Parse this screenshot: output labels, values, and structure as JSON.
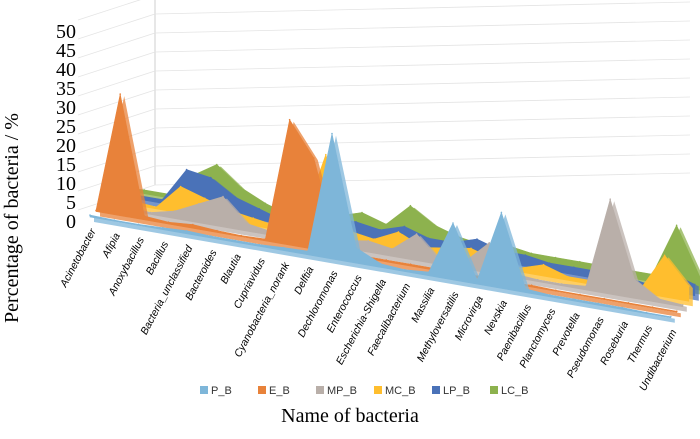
{
  "chart_data": {
    "type": "area",
    "title": "",
    "xlabel": "Name of bacteria",
    "ylabel": "Percentage of bacteria / %",
    "ylim": [
      0,
      50
    ],
    "yticks": [
      0,
      5,
      10,
      15,
      20,
      25,
      30,
      35,
      40,
      45,
      50
    ],
    "grid": true,
    "legend_position": "bottom",
    "categories": [
      "Acinetobacter",
      "Afipia",
      "Anoxybacillus",
      "Bacillus",
      "Bacteria_unclassified",
      "Bacteroides",
      "Blautia",
      "Cupriavidus",
      "Cyanobacteria_norank",
      "Delftia",
      "Dechloromonas",
      "Enterococcus",
      "Escherichia-Shigella",
      "Faecalibacterium",
      "Massilia",
      "Methyloversatilis",
      "Microvirga",
      "Nevskia",
      "Paenibacillus",
      "Planctomyces",
      "Prevotella",
      "Pseudomonas",
      "Roseburia",
      "Thermus",
      "Undibacterium"
    ],
    "series": [
      {
        "name": "P_B",
        "color": "#7EB6D9",
        "values": [
          0.5,
          0.3,
          0.3,
          0.5,
          0.8,
          0.5,
          0.5,
          0.5,
          0.8,
          1,
          33,
          4,
          1,
          0.5,
          1,
          15,
          1,
          20,
          1,
          0.5,
          0.5,
          0.5,
          0.5,
          0.3,
          0.3
        ]
      },
      {
        "name": "E_B",
        "color": "#E8823A",
        "values": [
          0.3,
          32,
          1,
          0.5,
          1,
          0.5,
          0.3,
          0.5,
          33,
          24,
          1,
          0.5,
          0.5,
          0.5,
          0.5,
          0.5,
          0.5,
          0.3,
          0.5,
          0.3,
          0.3,
          0.3,
          0.3,
          0.3,
          0.3
        ]
      },
      {
        "name": "MP_B",
        "color": "#B9AFA9",
        "values": [
          0.5,
          1,
          0.5,
          2,
          5,
          8,
          2,
          1,
          1,
          1,
          2,
          3,
          2,
          7,
          1,
          2,
          8,
          1,
          0.5,
          0.5,
          1,
          25,
          5,
          1,
          0.5
        ]
      },
      {
        "name": "MC_B",
        "color": "#FFBE2E",
        "values": [
          0.5,
          1,
          0.5,
          7,
          5,
          3,
          2,
          1,
          3,
          22,
          3,
          2,
          5,
          2,
          3,
          4,
          2,
          1,
          3,
          1,
          1,
          3,
          1,
          11,
          4
        ]
      },
      {
        "name": "LP_B",
        "color": "#4A72B8",
        "values": [
          0.5,
          1,
          1,
          10,
          9,
          5,
          3,
          1,
          2,
          4,
          4,
          3,
          5,
          3,
          3,
          5,
          3,
          3,
          2,
          2,
          2,
          2,
          1,
          5,
          3
        ]
      },
      {
        "name": "LC_B",
        "color": "#8DB24E",
        "values": [
          0.5,
          1,
          1,
          7,
          11,
          6,
          3,
          1,
          2,
          3,
          5,
          3,
          9,
          5,
          3,
          2,
          3,
          2,
          2,
          2,
          2,
          2,
          2,
          16,
          3
        ]
      }
    ]
  }
}
